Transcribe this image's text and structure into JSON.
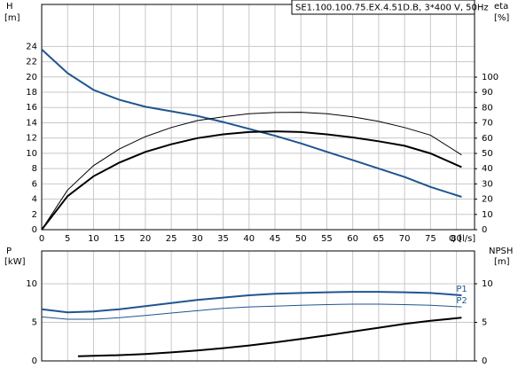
{
  "chart_data": [
    {
      "type": "line",
      "title": "SE1.100.100.75.EX.4.51D.B, 3*400 V, 50Hz",
      "y_label": "H",
      "y_unit": "[m]",
      "y2_label": "eta",
      "y2_unit": "[%]",
      "x_label": "Q [l/s]",
      "x": [
        0,
        5,
        10,
        15,
        20,
        25,
        30,
        35,
        40,
        45,
        50,
        55,
        60,
        65,
        70,
        75,
        81
      ],
      "xlim": [
        0,
        83.5
      ],
      "xticks": [
        0,
        5,
        10,
        15,
        20,
        25,
        30,
        35,
        40,
        45,
        50,
        55,
        60,
        65,
        70,
        75,
        80
      ],
      "ylim": [
        0,
        29.5
      ],
      "yticks": [
        0,
        2,
        4,
        6,
        8,
        10,
        12,
        14,
        16,
        18,
        20,
        22,
        24
      ],
      "y2lim": [
        0,
        147.7
      ],
      "y2ticks": [
        0,
        10,
        20,
        30,
        40,
        50,
        60,
        70,
        80,
        90,
        100
      ],
      "grid": true,
      "series": [
        {
          "color": "#1f5590",
          "width": 2,
          "values": [
            23.6,
            20.5,
            18.3,
            17,
            16.1,
            15.5,
            14.9,
            14.1,
            13.2,
            12.3,
            11.3,
            10.2,
            9.1,
            8,
            6.9,
            5.6,
            4.3
          ]
        },
        {
          "color": "#000000",
          "width": 1,
          "axis": "y2",
          "values": [
            0,
            26,
            42,
            53,
            61,
            67,
            71.5,
            74,
            76,
            76.8,
            77,
            76,
            74,
            71,
            67,
            62,
            49
          ]
        },
        {
          "color": "#000000",
          "width": 2,
          "axis": "y2",
          "values": [
            0,
            22,
            35,
            44,
            51,
            56,
            60,
            62.5,
            64,
            64.5,
            64,
            62.5,
            60.5,
            58,
            55,
            50,
            41
          ]
        }
      ]
    },
    {
      "type": "line",
      "y_label": "P",
      "y_unit": "[kW]",
      "y2_label": "NPSH",
      "y2_unit": "[m]",
      "x": [
        0,
        5,
        10,
        15,
        20,
        25,
        30,
        35,
        40,
        45,
        50,
        55,
        60,
        65,
        70,
        75,
        81
      ],
      "xlim": [
        0,
        83.5
      ],
      "xticks": [
        0,
        5,
        10,
        15,
        20,
        25,
        30,
        35,
        40,
        45,
        50,
        55,
        60,
        65,
        70,
        75,
        80
      ],
      "ylim": [
        0,
        14.25
      ],
      "yticks": [
        0,
        5,
        10
      ],
      "y2lim": [
        0,
        14.25
      ],
      "y2ticks": [
        0,
        5,
        10
      ],
      "grid": true,
      "series": [
        {
          "name": "P1",
          "color": "#1f5590",
          "width": 2,
          "values": [
            6.7,
            6.3,
            6.4,
            6.7,
            7.1,
            7.5,
            7.9,
            8.2,
            8.5,
            8.7,
            8.8,
            8.9,
            8.95,
            8.95,
            8.9,
            8.8,
            8.5
          ]
        },
        {
          "name": "P2",
          "color": "#1f5590",
          "width": 1,
          "values": [
            5.7,
            5.4,
            5.4,
            5.6,
            5.9,
            6.2,
            6.5,
            6.8,
            7.0,
            7.1,
            7.2,
            7.3,
            7.35,
            7.35,
            7.3,
            7.2,
            7.0
          ]
        },
        {
          "color": "#000000",
          "width": 2,
          "axis": "y2",
          "x": [
            7,
            10,
            15,
            20,
            25,
            30,
            35,
            40,
            45,
            50,
            55,
            60,
            65,
            70,
            75,
            81
          ],
          "values": [
            0.6,
            0.65,
            0.75,
            0.9,
            1.1,
            1.35,
            1.65,
            2.0,
            2.4,
            2.85,
            3.3,
            3.8,
            4.3,
            4.8,
            5.2,
            5.6
          ]
        }
      ]
    }
  ]
}
